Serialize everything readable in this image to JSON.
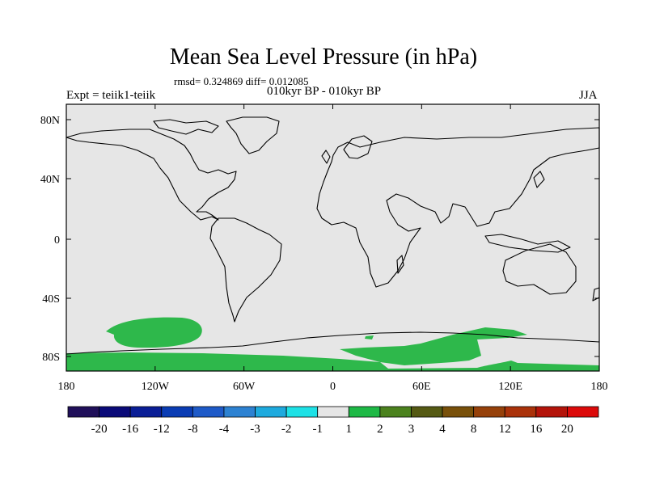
{
  "title": "Mean Sea Level Pressure (in hPa)",
  "stats": "rmsd= 0.324869 diff= 0.012085",
  "expt": "Expt = teiik1-teiik",
  "period": "010kyr BP - 010kyr BP",
  "season": "JJA",
  "map": {
    "lat_ticks": [
      "80N",
      "40N",
      "0",
      "40S",
      "80S"
    ],
    "lon_ticks": [
      "180",
      "120W",
      "60W",
      "0",
      "60E",
      "120E",
      "180"
    ],
    "background_color": "#e6e6e6",
    "anomaly_color": "#2eb84b",
    "coastline_color": "#000000"
  },
  "colorbar": {
    "colors": [
      "#20105a",
      "#0a0a78",
      "#0a1e96",
      "#0a3cb4",
      "#1e5ac8",
      "#2d82d2",
      "#1eaade",
      "#1ee1e6",
      "#e6e6e6",
      "#1eb946",
      "#4b821e",
      "#555a14",
      "#78500a",
      "#96410a",
      "#aa320a",
      "#b4140a",
      "#dc0a0a"
    ],
    "labels": [
      "-20",
      "-16",
      "-12",
      "-8",
      "-4",
      "-3",
      "-2",
      "-1",
      "1",
      "2",
      "3",
      "4",
      "8",
      "12",
      "16",
      "20"
    ]
  }
}
